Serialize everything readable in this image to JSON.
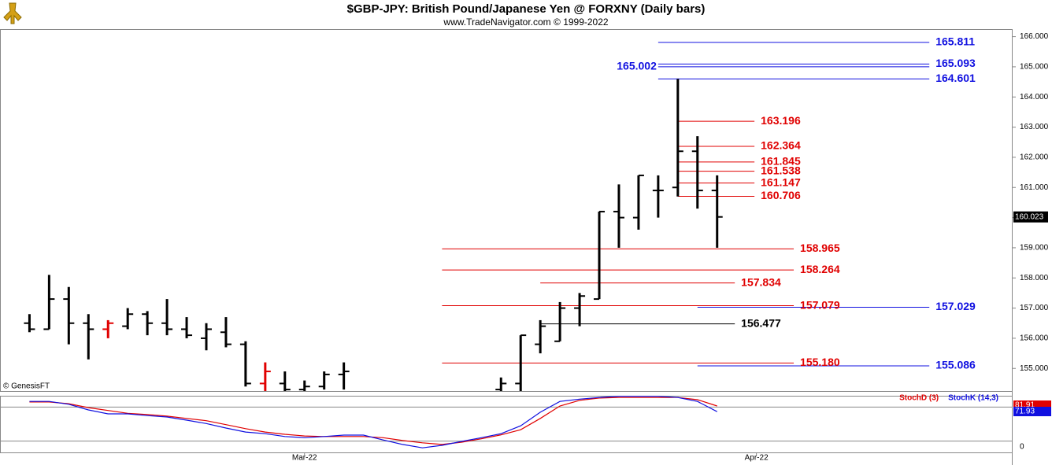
{
  "header": {
    "title": "$GBP-JPY:  British Pound/Japanese Yen @ FORXNY  (Daily bars)",
    "subtitle": "www.TradeNavigator.com © 1999-2022"
  },
  "chart_data": [
    {
      "type": "ohlc",
      "x": [
        0,
        1,
        2,
        3,
        4,
        5,
        6,
        7,
        8,
        9,
        10,
        11,
        12,
        13,
        14,
        15,
        16,
        24,
        25,
        26,
        27,
        28,
        29,
        30,
        31,
        32,
        33,
        34,
        35
      ],
      "open": [
        156.5,
        156.3,
        157.3,
        156.5,
        156.3,
        156.4,
        156.8,
        156.5,
        156.3,
        156.0,
        156.2,
        155.8,
        154.5,
        154.5,
        154.3,
        154.4,
        154.8,
        154.3,
        154.5,
        155.8,
        155.9,
        157.0,
        157.3,
        160.2,
        160.0,
        160.9,
        161.0,
        162.2,
        160.9
      ],
      "high": [
        156.8,
        158.1,
        157.7,
        156.8,
        156.6,
        157.0,
        156.9,
        157.3,
        156.7,
        156.5,
        156.7,
        155.9,
        155.2,
        154.9,
        154.6,
        154.9,
        155.2,
        154.7,
        156.1,
        156.6,
        157.2,
        157.5,
        160.2,
        161.1,
        161.4,
        161.4,
        164.6,
        162.7,
        161.4
      ],
      "low": [
        156.2,
        156.3,
        155.8,
        155.3,
        156.0,
        156.3,
        156.1,
        156.1,
        156.0,
        155.6,
        155.7,
        154.4,
        154.2,
        154.2,
        154.2,
        154.3,
        154.3,
        154.2,
        154.2,
        155.5,
        155.9,
        156.4,
        157.3,
        159.0,
        159.6,
        160.0,
        160.7,
        160.3,
        159.0
      ],
      "close": [
        156.3,
        157.3,
        156.5,
        156.3,
        156.5,
        156.8,
        156.5,
        156.3,
        156.1,
        156.3,
        155.8,
        154.5,
        154.9,
        154.3,
        154.4,
        154.8,
        154.9,
        154.5,
        156.1,
        156.4,
        157.0,
        157.4,
        160.2,
        160.0,
        161.4,
        160.9,
        162.2,
        160.9,
        160.023
      ],
      "colors": [
        "#000",
        "#000",
        "#000",
        "#000",
        "#e00000",
        "#000",
        "#000",
        "#000",
        "#000",
        "#000",
        "#000",
        "#000",
        "#e00000",
        "#000",
        "#000",
        "#000",
        "#000",
        "#000",
        "#000",
        "#000",
        "#000",
        "#000",
        "#000",
        "#000",
        "#000",
        "#000",
        "#000",
        "#000",
        "#000"
      ],
      "xlim": [
        -1.5,
        50
      ],
      "ylim": [
        154.25,
        166.25
      ],
      "yticks": [
        {
          "value": 155,
          "label": "155.000"
        },
        {
          "value": 156,
          "label": "156.000"
        },
        {
          "value": 157,
          "label": "157.000"
        },
        {
          "value": 158,
          "label": "158.000"
        },
        {
          "value": 159,
          "label": "159.000"
        },
        {
          "value": 160,
          "label": "160.000"
        },
        {
          "value": 161,
          "label": "161.000"
        },
        {
          "value": 162,
          "label": "162.000"
        },
        {
          "value": 163,
          "label": "163.000"
        },
        {
          "value": 164,
          "label": "164.000"
        },
        {
          "value": 165,
          "label": "165.000"
        },
        {
          "value": 166,
          "label": "166.000"
        }
      ],
      "current_price": 160.023,
      "watermark": "© GenesisFT",
      "levels": [
        {
          "value": 165.811,
          "label": "165.811",
          "color": "#1010e0",
          "start": 32,
          "end": 45.8,
          "label_side": "right"
        },
        {
          "value": 165.093,
          "label": "165.093",
          "color": "#1010e0",
          "start": 32,
          "end": 45.8,
          "label_side": "right"
        },
        {
          "value": 165.002,
          "label": "165.002",
          "color": "#1010e0",
          "start": 32,
          "end": 45.8,
          "label_side": "left"
        },
        {
          "value": 164.601,
          "label": "164.601",
          "color": "#1010e0",
          "start": 32,
          "end": 45.8,
          "label_side": "right"
        },
        {
          "value": 163.196,
          "label": "163.196",
          "color": "#e00000",
          "start": 33,
          "end": 36.9,
          "label_side": "right"
        },
        {
          "value": 162.364,
          "label": "162.364",
          "color": "#e00000",
          "start": 33,
          "end": 36.9,
          "label_side": "right"
        },
        {
          "value": 161.845,
          "label": "161.845",
          "color": "#e00000",
          "start": 33,
          "end": 36.9,
          "label_side": "right"
        },
        {
          "value": 161.538,
          "label": "161.538",
          "color": "#e00000",
          "start": 33,
          "end": 36.9,
          "label_side": "right"
        },
        {
          "value": 161.147,
          "label": "161.147",
          "color": "#e00000",
          "start": 33,
          "end": 36.9,
          "label_side": "right"
        },
        {
          "value": 160.706,
          "label": "160.706",
          "color": "#e00000",
          "start": 33,
          "end": 36.9,
          "label_side": "right"
        },
        {
          "value": 158.965,
          "label": "158.965",
          "color": "#e00000",
          "start": 21,
          "end": 38.9,
          "label_side": "right"
        },
        {
          "value": 158.264,
          "label": "158.264",
          "color": "#e00000",
          "start": 21,
          "end": 38.9,
          "label_side": "right"
        },
        {
          "value": 157.834,
          "label": "157.834",
          "color": "#e00000",
          "start": 26,
          "end": 35.9,
          "label_side": "right"
        },
        {
          "value": 157.079,
          "label": "157.079",
          "color": "#e00000",
          "start": 21,
          "end": 38.9,
          "label_side": "right"
        },
        {
          "value": 157.029,
          "label": "157.029",
          "color": "#1010e0",
          "start": 34,
          "end": 45.8,
          "label_side": "right"
        },
        {
          "value": 156.477,
          "label": "156.477",
          "color": "#000000",
          "start": 26,
          "end": 35.9,
          "label_side": "right"
        },
        {
          "value": 155.18,
          "label": "155.180",
          "color": "#e00000",
          "start": 21,
          "end": 38.9,
          "label_side": "right"
        },
        {
          "value": 155.086,
          "label": "155.086",
          "color": "#1010e0",
          "start": 34,
          "end": 45.8,
          "label_side": "right"
        }
      ]
    },
    {
      "type": "line",
      "x": [
        0,
        1,
        2,
        3,
        4,
        5,
        6,
        7,
        8,
        9,
        10,
        11,
        12,
        13,
        14,
        15,
        16,
        17,
        18,
        19,
        20,
        21,
        22,
        23,
        24,
        25,
        26,
        27,
        28,
        29,
        30,
        31,
        32,
        33,
        34,
        35
      ],
      "series": [
        {
          "name": "StochD (3)",
          "color": "#e00000",
          "values": [
            89,
            89,
            86,
            79,
            74,
            69,
            67,
            64,
            60,
            56,
            49,
            42,
            36,
            32,
            29,
            28,
            28,
            28,
            26,
            21,
            17,
            14,
            18,
            24,
            31,
            40,
            60,
            82,
            92,
            96,
            97,
            97,
            97,
            97,
            93,
            81.91
          ]
        },
        {
          "name": "StochK (14,3)",
          "color": "#1010e0",
          "values": [
            90,
            90,
            85,
            75,
            68,
            68,
            65,
            62.5,
            57,
            51,
            43,
            36,
            33,
            28,
            26,
            28,
            30.5,
            30.5,
            22,
            14,
            8,
            12.5,
            19.5,
            26,
            33,
            47,
            71,
            90,
            94,
            97,
            99,
            99,
            99,
            97,
            90,
            71.93
          ]
        }
      ],
      "xlim": [
        -1.5,
        50
      ],
      "ylim": [
        0,
        100
      ],
      "yticks": [
        0
      ],
      "ref_lines": [
        20,
        80
      ],
      "xticks": [
        {
          "value": 14,
          "label": "Mar-22"
        },
        {
          "value": 37,
          "label": "Apr-22"
        }
      ]
    }
  ]
}
